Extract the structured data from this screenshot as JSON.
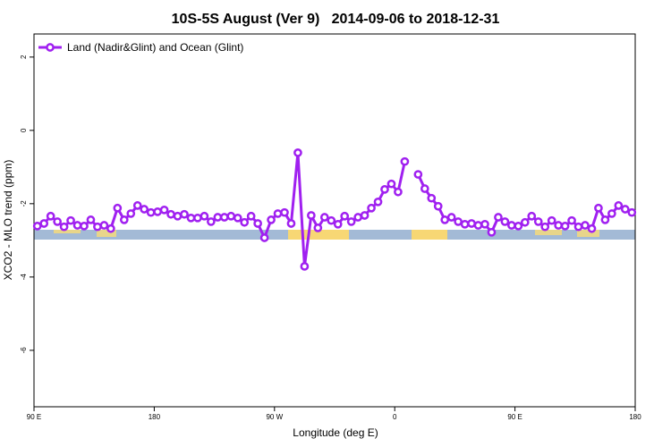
{
  "chart_data": {
    "type": "line",
    "title": "10S-5S August (Ver 9)   2014-09-06 to 2018-12-31",
    "xlabel": "Longitude (deg E)",
    "ylabel": "XCO2 - MLO trend (ppm)",
    "x": [
      92.5,
      97.5,
      102.5,
      107.5,
      112.5,
      117.5,
      122.5,
      127.5,
      132.5,
      137.5,
      142.5,
      147.5,
      152.5,
      157.5,
      162.5,
      167.5,
      172.5,
      177.5,
      182.5,
      187.5,
      192.5,
      197.5,
      202.5,
      207.5,
      212.5,
      217.5,
      222.5,
      227.5,
      232.5,
      237.5,
      242.5,
      247.5,
      252.5,
      257.5,
      262.5,
      267.5,
      272.5,
      277.5,
      282.5,
      287.5,
      292.5,
      297.5,
      302.5,
      307.5,
      312.5,
      317.5,
      322.5,
      327.5,
      332.5,
      337.5,
      342.5,
      347.5,
      352.5,
      357.5,
      362.5,
      367.5,
      372.5,
      377.5,
      382.5,
      387.5,
      392.5,
      397.5,
      402.5,
      407.5,
      412.5,
      417.5,
      422.5,
      427.5,
      432.5,
      437.5,
      442.5,
      447.5,
      452.5,
      457.5,
      462.5,
      467.5,
      472.5,
      477.5,
      482.5,
      487.5,
      492.5,
      497.5,
      502.5,
      507.5,
      512.5,
      517.5,
      522.5,
      527.5,
      532.5,
      537.5
    ],
    "series": [
      {
        "name": "Land (Nadir&Glint) and Ocean (Glint)",
        "color": "#a020f0",
        "values": [
          -2.61,
          -2.54,
          -2.34,
          -2.49,
          -2.63,
          -2.46,
          -2.59,
          -2.61,
          -2.44,
          -2.63,
          -2.59,
          -2.68,
          -2.12,
          -2.44,
          -2.27,
          -2.05,
          -2.15,
          -2.24,
          -2.22,
          -2.17,
          -2.29,
          -2.34,
          -2.29,
          -2.39,
          -2.39,
          -2.34,
          -2.49,
          -2.37,
          -2.37,
          -2.34,
          -2.39,
          -2.51,
          -2.34,
          -2.54,
          -2.93,
          -2.44,
          -2.27,
          -2.24,
          -2.54,
          -0.61,
          -3.71,
          -2.32,
          -2.66,
          -2.37,
          -2.46,
          -2.56,
          -2.34,
          -2.49,
          -2.37,
          -2.32,
          -2.12,
          -1.95,
          -1.61,
          -1.46,
          -1.68,
          -0.85,
          null,
          -1.2,
          -1.59,
          -1.85,
          -2.07,
          -2.44,
          -2.37,
          -2.49,
          -2.56,
          -2.54,
          -2.59,
          -2.56,
          -2.78,
          -2.37,
          -2.49,
          -2.59,
          -2.61,
          -2.51,
          -2.34,
          -2.49,
          -2.63,
          -2.46,
          -2.59,
          -2.61,
          -2.46,
          -2.63,
          -2.59,
          -2.68,
          -2.12,
          -2.44,
          -2.27,
          -2.05,
          -2.15,
          -2.24
        ]
      }
    ],
    "xlim": [
      90,
      540
    ],
    "xticks": [
      {
        "value": 90,
        "label": "90 E"
      },
      180,
      {
        "value": 270,
        "label": "90 W"
      },
      {
        "value": 360,
        "label": "0"
      },
      {
        "value": 450,
        "label": "90 E"
      },
      {
        "value": 540,
        "label": "180"
      }
    ],
    "ylim": [
      -7.54,
      2.63
    ],
    "yticks": [
      2,
      0,
      -2,
      -4,
      -6
    ],
    "legend": "top-left"
  }
}
